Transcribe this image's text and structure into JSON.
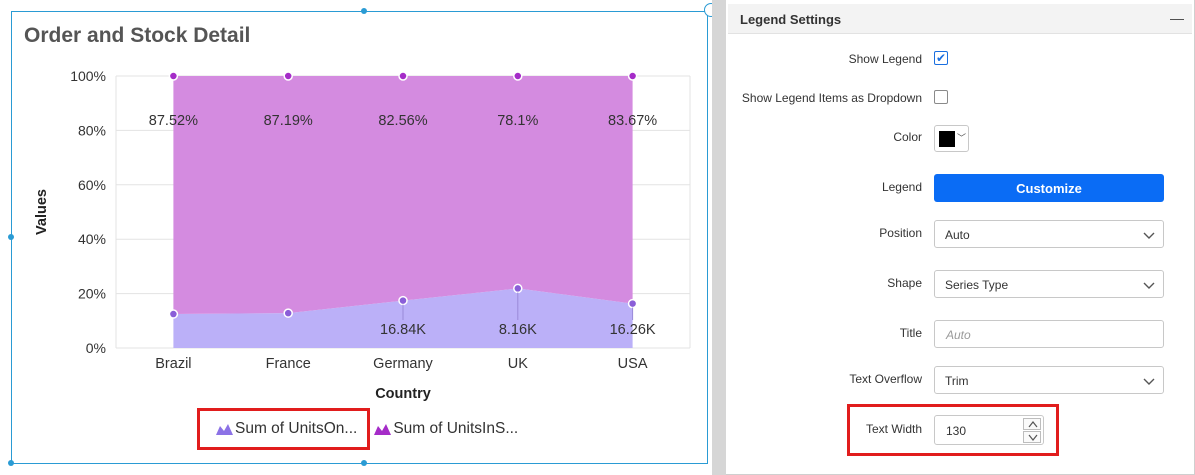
{
  "widget": {
    "title": "Order and Stock Detail",
    "legend": {
      "items": [
        {
          "label": "Sum of UnitsOn...",
          "color": "#8c72e6"
        },
        {
          "label": "Sum of UnitsInS...",
          "color": "#a52cc8"
        }
      ]
    }
  },
  "chart_data": {
    "type": "area",
    "stacked": "percent",
    "title": "Order and Stock Detail",
    "xlabel": "Country",
    "ylabel": "Values",
    "categories": [
      "Brazil",
      "France",
      "Germany",
      "UK",
      "USA"
    ],
    "y_ticks": [
      "0%",
      "20%",
      "40%",
      "60%",
      "80%",
      "100%"
    ],
    "ylim": [
      0,
      100
    ],
    "grid": true,
    "legend_position": "bottom",
    "series": [
      {
        "name": "Sum of UnitsOn...",
        "color": "#bbb0f8",
        "point_color": "#8a5ed8",
        "values": [
          12.48,
          12.81,
          17.44,
          21.9,
          16.33
        ],
        "data_labels": [
          "",
          "",
          "16.84K",
          "8.16K",
          "16.26K"
        ]
      },
      {
        "name": "Sum of UnitsInS...",
        "color": "#d48be0",
        "point_color": "#a52cc8",
        "values": [
          87.52,
          87.19,
          82.56,
          78.1,
          83.67
        ],
        "data_labels": [
          "87.52%",
          "87.19%",
          "82.56%",
          "78.1%",
          "83.67%"
        ]
      }
    ]
  },
  "panel": {
    "title": "Legend Settings",
    "collapse_icon": "minus-icon",
    "show_legend": {
      "label": "Show Legend",
      "checked": true
    },
    "show_dropdown": {
      "label": "Show Legend Items as Dropdown",
      "checked": false
    },
    "color": {
      "label": "Color",
      "value": "#000000"
    },
    "legend": {
      "label": "Legend",
      "button": "Customize"
    },
    "position": {
      "label": "Position",
      "value": "Auto"
    },
    "shape": {
      "label": "Shape",
      "value": "Series Type"
    },
    "title_field": {
      "label": "Title",
      "placeholder": "Auto"
    },
    "text_overflow": {
      "label": "Text Overflow",
      "value": "Trim"
    },
    "text_width": {
      "label": "Text Width",
      "value": "130"
    }
  }
}
